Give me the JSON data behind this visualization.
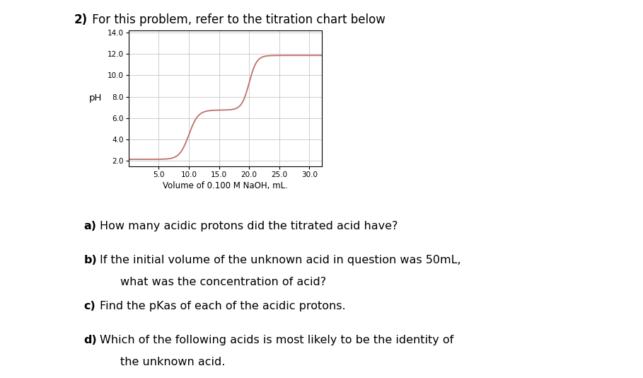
{
  "title_bold": "2)",
  "title_normal": " For this problem, refer to the titration chart below",
  "xlabel": "Volume of 0.100 M NaOH, mL.",
  "ylabel": "pH",
  "xlim": [
    0,
    32
  ],
  "ylim": [
    1.5,
    14.2
  ],
  "yticks": [
    2.0,
    4.0,
    6.0,
    8.0,
    10.0,
    12.0,
    14.0
  ],
  "ytick_labels": [
    "2.0",
    "4.0",
    "6.0",
    "8.0",
    "10.0",
    "12.0",
    "14.0"
  ],
  "xticks": [
    5.0,
    10.0,
    15.0,
    20.0,
    25.0,
    30.0
  ],
  "xtick_labels": [
    "5.0",
    "10.0",
    "15.0",
    "20.0",
    "25.0",
    "30.0"
  ],
  "curve_color": "#c0706a",
  "background_color": "#ffffff",
  "grid_color": "#bbbbbb",
  "font_size_title": 12,
  "font_size_labels": 8.5,
  "font_size_axis_tick": 7.5,
  "font_size_questions": 11.5,
  "font_size_sub": 11.0
}
